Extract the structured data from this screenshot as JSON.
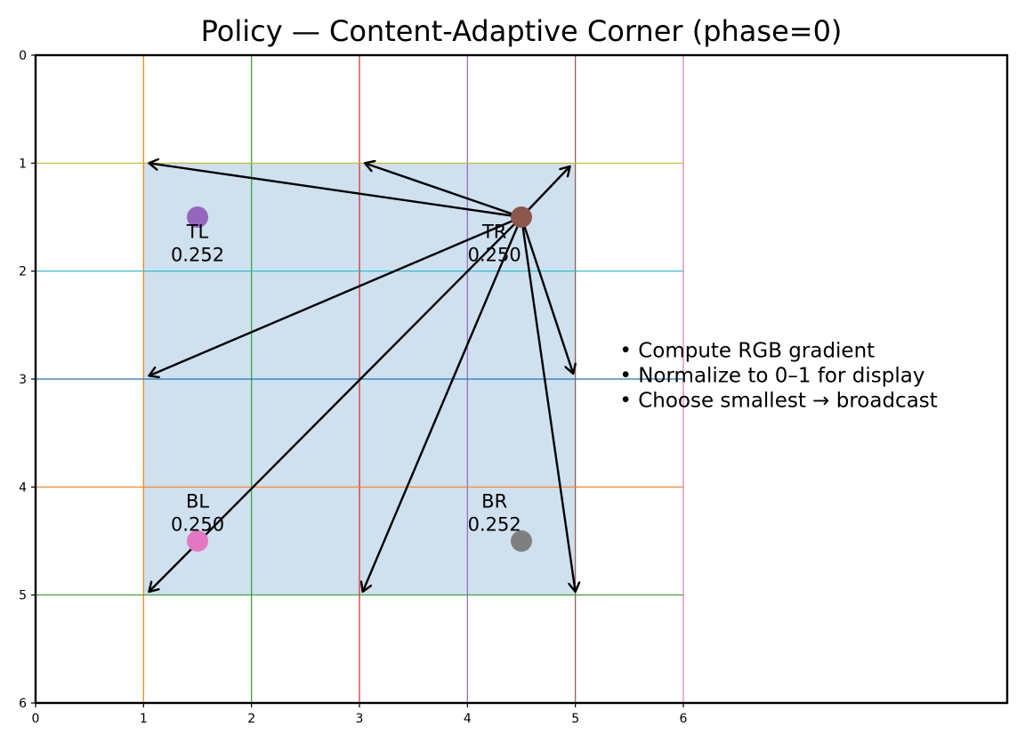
{
  "chart_data": {
    "type": "scatter",
    "title": "Policy — Content-Adaptive Corner (phase=0)",
    "xlim": [
      0,
      9
    ],
    "ylim": [
      6,
      0
    ],
    "y_inverted": true,
    "x_ticks": [
      "0",
      "1",
      "2",
      "3",
      "4",
      "5",
      "6"
    ],
    "y_ticks": [
      "0",
      "1",
      "2",
      "3",
      "4",
      "5",
      "6"
    ],
    "grid_vertical": [
      {
        "x": 1,
        "color": "#ff7f0e"
      },
      {
        "x": 2,
        "color": "#2ca02c"
      },
      {
        "x": 3,
        "color": "#d62728"
      },
      {
        "x": 4,
        "color": "#9467bd"
      },
      {
        "x": 5,
        "color": "#8c564b"
      },
      {
        "x": 6,
        "color": "#e377c2"
      }
    ],
    "grid_horizontal": [
      {
        "y": 1,
        "color": "#bcbd22"
      },
      {
        "y": 2,
        "color": "#17becf"
      },
      {
        "y": 3,
        "color": "#1f77b4"
      },
      {
        "y": 4,
        "color": "#ff7f0e"
      },
      {
        "y": 5,
        "color": "#2ca02c"
      }
    ],
    "region": {
      "x0": 1,
      "y0": 1,
      "x1": 5,
      "y1": 5,
      "color": "#cfe0ee"
    },
    "corners": [
      {
        "name": "TL",
        "value": "0.252",
        "x": 1.5,
        "y": 1.5,
        "color": "#9467bd",
        "label_x": 1.5,
        "label_y": 1.8
      },
      {
        "name": "TR",
        "value": "0.250",
        "x": 4.5,
        "y": 1.5,
        "color": "#8c564b",
        "label_x": 4.25,
        "label_y": 1.8
      },
      {
        "name": "BL",
        "value": "0.250",
        "x": 1.5,
        "y": 4.5,
        "color": "#e377c2",
        "label_x": 1.5,
        "label_y": 4.3
      },
      {
        "name": "BR",
        "value": "0.252",
        "x": 4.5,
        "y": 4.5,
        "color": "#7f7f7f",
        "label_x": 4.25,
        "label_y": 4.3
      }
    ],
    "arrows_from": {
      "x": 4.5,
      "y": 1.5
    },
    "arrows_to": [
      {
        "x": 1.05,
        "y": 1.0
      },
      {
        "x": 3.05,
        "y": 1.0
      },
      {
        "x": 4.95,
        "y": 1.03
      },
      {
        "x": 1.05,
        "y": 2.97
      },
      {
        "x": 4.98,
        "y": 2.95
      },
      {
        "x": 1.05,
        "y": 4.97
      },
      {
        "x": 3.03,
        "y": 4.97
      },
      {
        "x": 5.0,
        "y": 4.97
      }
    ],
    "annotation": {
      "x": 5.5,
      "y": 2.8,
      "lines": [
        "• Compute RGB gradient",
        "• Normalize to 0–1 for display",
        "• Choose smallest → broadcast"
      ]
    }
  }
}
